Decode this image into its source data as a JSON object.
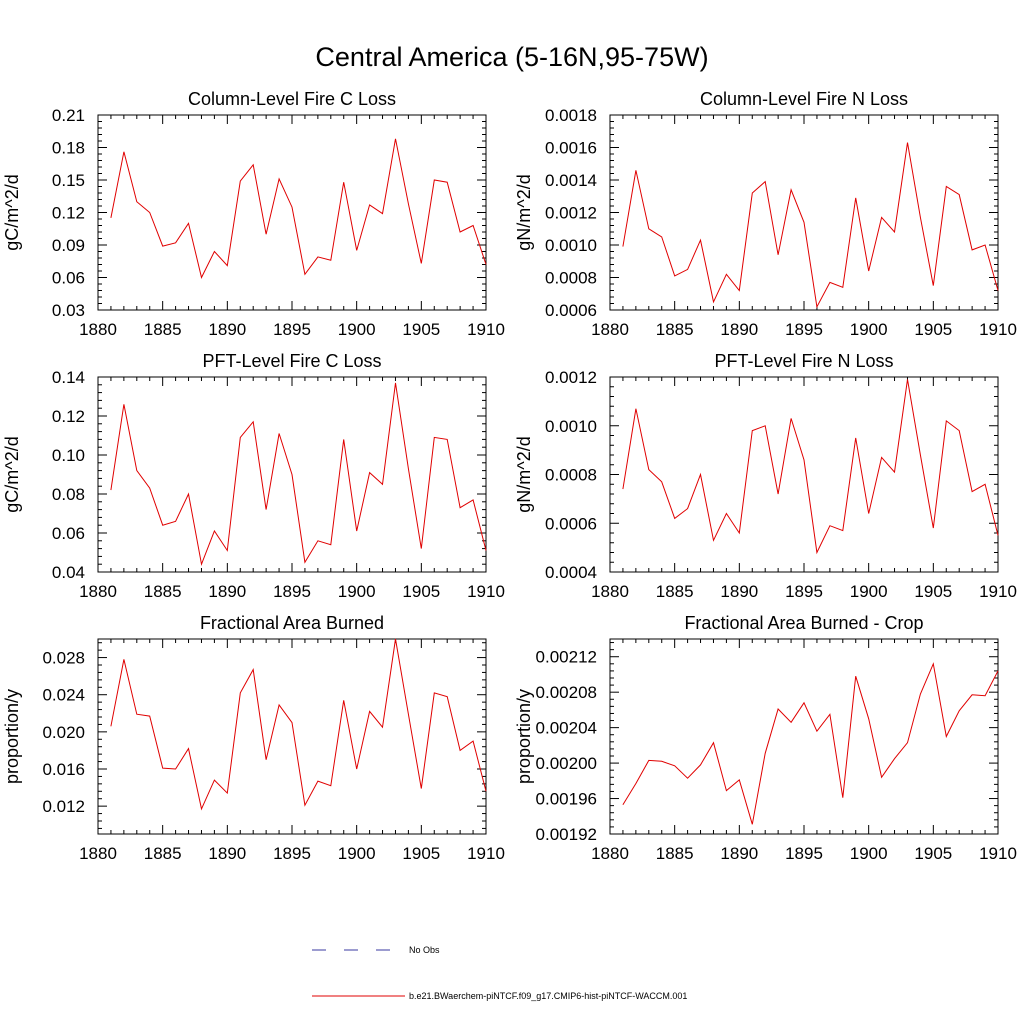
{
  "figure": {
    "title": "Central America (5-16N,95-75W)"
  },
  "legend": {
    "entries": [
      {
        "label": "No Obs",
        "color": "#3a3aa0",
        "style": "dashed"
      },
      {
        "label": "b.e21.BWaerchem-piNTCF.f09_g17.CMIP6-hist-piNTCF-WACCM.001",
        "color": "#e00000",
        "style": "solid"
      }
    ]
  },
  "chart_data": [
    {
      "type": "line",
      "title": "Column-Level Fire C Loss",
      "ylabel": "gC/m^2/d",
      "xlim": [
        1880,
        1910
      ],
      "ylim": [
        0.03,
        0.21
      ],
      "xticks": [
        1880,
        1885,
        1890,
        1895,
        1900,
        1905,
        1910
      ],
      "xtick_labels": [
        "1880",
        "1885",
        "1890",
        "1895",
        "1900",
        "1905",
        "1910"
      ],
      "yticks": [
        0.03,
        0.06,
        0.09,
        0.12,
        0.15,
        0.18,
        0.21
      ],
      "ytick_labels": [
        "0.03",
        "0.06",
        "0.09",
        "0.12",
        "0.15",
        "0.18",
        "0.21"
      ],
      "series": [
        {
          "color": "#e00000",
          "x": [
            1881,
            1882,
            1883,
            1884,
            1885,
            1886,
            1887,
            1888,
            1889,
            1890,
            1891,
            1892,
            1893,
            1894,
            1895,
            1896,
            1897,
            1898,
            1899,
            1900,
            1901,
            1902,
            1903,
            1904,
            1905,
            1906,
            1907,
            1908,
            1909,
            1910
          ],
          "values": [
            0.115,
            0.176,
            0.13,
            0.12,
            0.089,
            0.092,
            0.11,
            0.06,
            0.084,
            0.071,
            0.149,
            0.164,
            0.1,
            0.151,
            0.125,
            0.063,
            0.079,
            0.076,
            0.148,
            0.085,
            0.127,
            0.119,
            0.188,
            0.128,
            0.073,
            0.15,
            0.148,
            0.102,
            0.108,
            0.072
          ]
        }
      ]
    },
    {
      "type": "line",
      "title": "Column-Level Fire N Loss",
      "ylabel": "gN/m^2/d",
      "xlim": [
        1880,
        1910
      ],
      "ylim": [
        0.0006,
        0.0018
      ],
      "xticks": [
        1880,
        1885,
        1890,
        1895,
        1900,
        1905,
        1910
      ],
      "xtick_labels": [
        "1880",
        "1885",
        "1890",
        "1895",
        "1900",
        "1905",
        "1910"
      ],
      "yticks": [
        0.0006,
        0.0008,
        0.001,
        0.0012,
        0.0014,
        0.0016,
        0.0018
      ],
      "ytick_labels": [
        "0.0006",
        "0.0008",
        "0.0010",
        "0.0012",
        "0.0014",
        "0.0016",
        "0.0018"
      ],
      "series": [
        {
          "color": "#e00000",
          "x": [
            1881,
            1882,
            1883,
            1884,
            1885,
            1886,
            1887,
            1888,
            1889,
            1890,
            1891,
            1892,
            1893,
            1894,
            1895,
            1896,
            1897,
            1898,
            1899,
            1900,
            1901,
            1902,
            1903,
            1904,
            1905,
            1906,
            1907,
            1908,
            1909,
            1910
          ],
          "values": [
            0.00099,
            0.00146,
            0.0011,
            0.00105,
            0.00081,
            0.00085,
            0.00103,
            0.00065,
            0.00082,
            0.00072,
            0.00132,
            0.00139,
            0.00094,
            0.00134,
            0.00114,
            0.00062,
            0.00077,
            0.00074,
            0.00129,
            0.00084,
            0.00117,
            0.00108,
            0.00163,
            0.00117,
            0.00075,
            0.00136,
            0.00131,
            0.00097,
            0.001,
            0.00072
          ]
        }
      ]
    },
    {
      "type": "line",
      "title": "PFT-Level Fire C Loss",
      "ylabel": "gC/m^2/d",
      "xlim": [
        1880,
        1910
      ],
      "ylim": [
        0.04,
        0.14
      ],
      "xticks": [
        1880,
        1885,
        1890,
        1895,
        1900,
        1905,
        1910
      ],
      "xtick_labels": [
        "1880",
        "1885",
        "1890",
        "1895",
        "1900",
        "1905",
        "1910"
      ],
      "yticks": [
        0.04,
        0.06,
        0.08,
        0.1,
        0.12,
        0.14
      ],
      "ytick_labels": [
        "0.04",
        "0.06",
        "0.08",
        "0.10",
        "0.12",
        "0.14"
      ],
      "series": [
        {
          "color": "#e00000",
          "x": [
            1881,
            1882,
            1883,
            1884,
            1885,
            1886,
            1887,
            1888,
            1889,
            1890,
            1891,
            1892,
            1893,
            1894,
            1895,
            1896,
            1897,
            1898,
            1899,
            1900,
            1901,
            1902,
            1903,
            1904,
            1905,
            1906,
            1907,
            1908,
            1909,
            1910
          ],
          "values": [
            0.082,
            0.126,
            0.092,
            0.083,
            0.064,
            0.066,
            0.08,
            0.044,
            0.061,
            0.051,
            0.109,
            0.117,
            0.072,
            0.111,
            0.09,
            0.045,
            0.056,
            0.054,
            0.108,
            0.061,
            0.091,
            0.085,
            0.137,
            0.093,
            0.052,
            0.109,
            0.108,
            0.073,
            0.077,
            0.051
          ]
        }
      ]
    },
    {
      "type": "line",
      "title": "PFT-Level Fire N Loss",
      "ylabel": "gN/m^2/d",
      "xlim": [
        1880,
        1910
      ],
      "ylim": [
        0.0004,
        0.0012
      ],
      "xticks": [
        1880,
        1885,
        1890,
        1895,
        1900,
        1905,
        1910
      ],
      "xtick_labels": [
        "1880",
        "1885",
        "1890",
        "1895",
        "1900",
        "1905",
        "1910"
      ],
      "yticks": [
        0.0004,
        0.0006,
        0.0008,
        0.001,
        0.0012
      ],
      "ytick_labels": [
        "0.0004",
        "0.0006",
        "0.0008",
        "0.0010",
        "0.0012"
      ],
      "series": [
        {
          "color": "#e00000",
          "x": [
            1881,
            1882,
            1883,
            1884,
            1885,
            1886,
            1887,
            1888,
            1889,
            1890,
            1891,
            1892,
            1893,
            1894,
            1895,
            1896,
            1897,
            1898,
            1899,
            1900,
            1901,
            1902,
            1903,
            1904,
            1905,
            1906,
            1907,
            1908,
            1909,
            1910
          ],
          "values": [
            0.00074,
            0.00107,
            0.00082,
            0.00077,
            0.00062,
            0.00066,
            0.0008,
            0.00053,
            0.00064,
            0.00056,
            0.00098,
            0.001,
            0.00072,
            0.00103,
            0.00086,
            0.00048,
            0.00059,
            0.00057,
            0.00095,
            0.00064,
            0.00087,
            0.00081,
            0.00119,
            0.00088,
            0.00058,
            0.00102,
            0.00098,
            0.00073,
            0.00076,
            0.00055
          ]
        }
      ]
    },
    {
      "type": "line",
      "title": "Fractional Area Burned",
      "ylabel": "proportion/y",
      "xlim": [
        1880,
        1910
      ],
      "ylim": [
        0.009,
        0.03
      ],
      "xticks": [
        1880,
        1885,
        1890,
        1895,
        1900,
        1905,
        1910
      ],
      "xtick_labels": [
        "1880",
        "1885",
        "1890",
        "1895",
        "1900",
        "1905",
        "1910"
      ],
      "yticks": [
        0.012,
        0.016,
        0.02,
        0.024,
        0.028
      ],
      "ytick_labels": [
        "0.012",
        "0.016",
        "0.020",
        "0.024",
        "0.028"
      ],
      "series": [
        {
          "color": "#e00000",
          "x": [
            1881,
            1882,
            1883,
            1884,
            1885,
            1886,
            1887,
            1888,
            1889,
            1890,
            1891,
            1892,
            1893,
            1894,
            1895,
            1896,
            1897,
            1898,
            1899,
            1900,
            1901,
            1902,
            1903,
            1904,
            1905,
            1906,
            1907,
            1908,
            1909,
            1910
          ],
          "values": [
            0.0206,
            0.0278,
            0.0219,
            0.0217,
            0.0161,
            0.016,
            0.0182,
            0.0117,
            0.0148,
            0.0134,
            0.0242,
            0.0267,
            0.017,
            0.0229,
            0.021,
            0.0121,
            0.0147,
            0.0142,
            0.0234,
            0.016,
            0.0222,
            0.0205,
            0.03,
            0.0219,
            0.0139,
            0.0242,
            0.0238,
            0.018,
            0.019,
            0.0136
          ]
        }
      ]
    },
    {
      "type": "line",
      "title": "Fractional Area Burned - Crop",
      "ylabel": "proportion/y",
      "xlim": [
        1880,
        1910
      ],
      "ylim": [
        0.00192,
        0.00214
      ],
      "xticks": [
        1880,
        1885,
        1890,
        1895,
        1900,
        1905,
        1910
      ],
      "xtick_labels": [
        "1880",
        "1885",
        "1890",
        "1895",
        "1900",
        "1905",
        "1910"
      ],
      "yticks": [
        0.00192,
        0.00196,
        0.002,
        0.00204,
        0.00208,
        0.00212
      ],
      "ytick_labels": [
        "0.00192",
        "0.00196",
        "0.00200",
        "0.00204",
        "0.00208",
        "0.00212"
      ],
      "series": [
        {
          "color": "#e00000",
          "x": [
            1881,
            1882,
            1883,
            1884,
            1885,
            1886,
            1887,
            1888,
            1889,
            1890,
            1891,
            1892,
            1893,
            1894,
            1895,
            1896,
            1897,
            1898,
            1899,
            1900,
            1901,
            1902,
            1903,
            1904,
            1905,
            1906,
            1907,
            1908,
            1909,
            1910
          ],
          "values": [
            0.001953,
            0.001977,
            0.002003,
            0.002002,
            0.001997,
            0.001983,
            0.001998,
            0.002023,
            0.001969,
            0.001981,
            0.001931,
            0.002011,
            0.002061,
            0.002046,
            0.002068,
            0.002036,
            0.002055,
            0.001961,
            0.002098,
            0.00205,
            0.001984,
            0.002005,
            0.002023,
            0.002078,
            0.002112,
            0.00203,
            0.002059,
            0.002077,
            0.002076,
            0.002104
          ]
        }
      ]
    }
  ]
}
